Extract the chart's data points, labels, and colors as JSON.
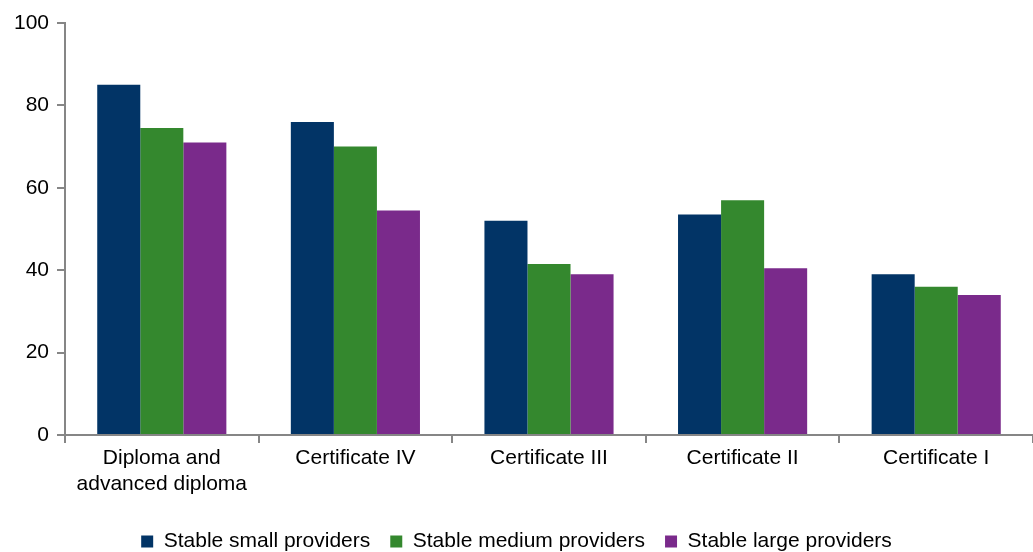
{
  "chart_data": {
    "type": "bar",
    "categories": [
      "Diploma and advanced diploma",
      "Certificate IV",
      "Certificate III",
      "Certificate II",
      "Certificate I"
    ],
    "series": [
      {
        "name": "Stable small providers",
        "color": "#023466",
        "values": [
          85,
          76,
          52,
          53.5,
          39
        ]
      },
      {
        "name": "Stable medium providers",
        "color": "#34882e",
        "values": [
          74.5,
          70,
          41.5,
          57,
          36
        ]
      },
      {
        "name": "Stable large providers",
        "color": "#7a2a8b",
        "values": [
          71,
          54.5,
          39,
          40.5,
          34
        ]
      }
    ],
    "ylim": [
      0,
      100
    ],
    "yticks": [
      0,
      20,
      40,
      60,
      80,
      100
    ],
    "legend": "bottom"
  }
}
